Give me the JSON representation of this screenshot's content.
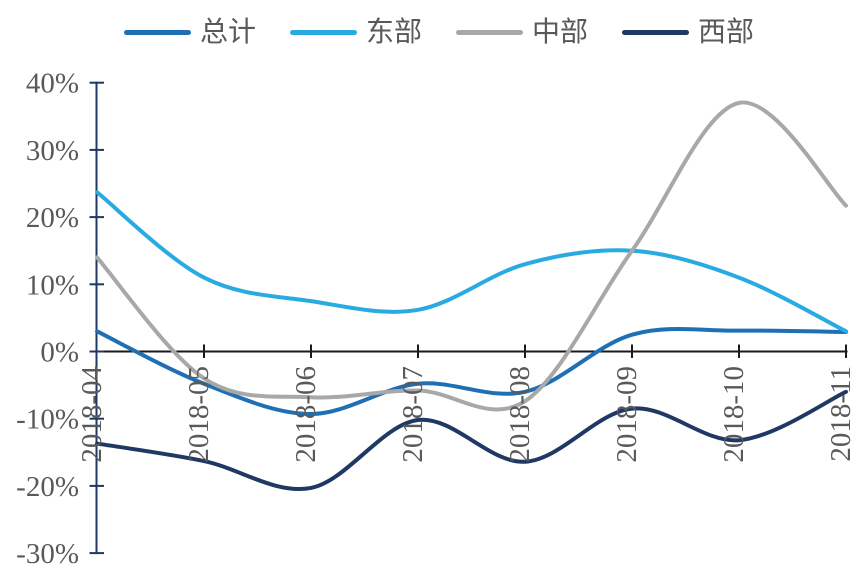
{
  "colors": {
    "background": "#FFFFFF",
    "x_axis_line": "#1A1A1A",
    "y_axis_line": "#1F3864",
    "tick_label": "#595959",
    "legend_label": "#595959"
  },
  "chart_data": {
    "type": "line",
    "title": "",
    "xlabel": "",
    "ylabel": "",
    "grid": false,
    "legend_position": "top",
    "line_style": "smooth",
    "categories": [
      "2018-04",
      "2018-05",
      "2018-06",
      "2018-07",
      "2018-08",
      "2018-09",
      "2018-10",
      "2018-11"
    ],
    "series": [
      {
        "id": "total",
        "name": "总计",
        "color": "#1F6FB5",
        "values": [
          3.0,
          -4.8,
          -9.3,
          -4.8,
          -6.0,
          2.5,
          3.1,
          2.9
        ]
      },
      {
        "id": "east",
        "name": "东部",
        "color": "#29ABE2",
        "values": [
          23.7,
          11.0,
          7.5,
          6.2,
          13.0,
          15.0,
          11.0,
          3.0
        ]
      },
      {
        "id": "central",
        "name": "中部",
        "color": "#A8A8A8",
        "values": [
          14.0,
          -4.0,
          -6.8,
          -5.8,
          -7.4,
          15.0,
          37.0,
          21.7
        ]
      },
      {
        "id": "west",
        "name": "西部",
        "color": "#1F3864",
        "values": [
          -13.7,
          -16.3,
          -20.3,
          -10.2,
          -16.4,
          -8.5,
          -13.2,
          -6.0
        ]
      }
    ],
    "ylim": [
      -30,
      40
    ],
    "ytick_step": 10,
    "ytick_labels": [
      "40%",
      "30%",
      "20%",
      "10%",
      "0%",
      "-10%",
      "-20%",
      "-30%"
    ]
  }
}
